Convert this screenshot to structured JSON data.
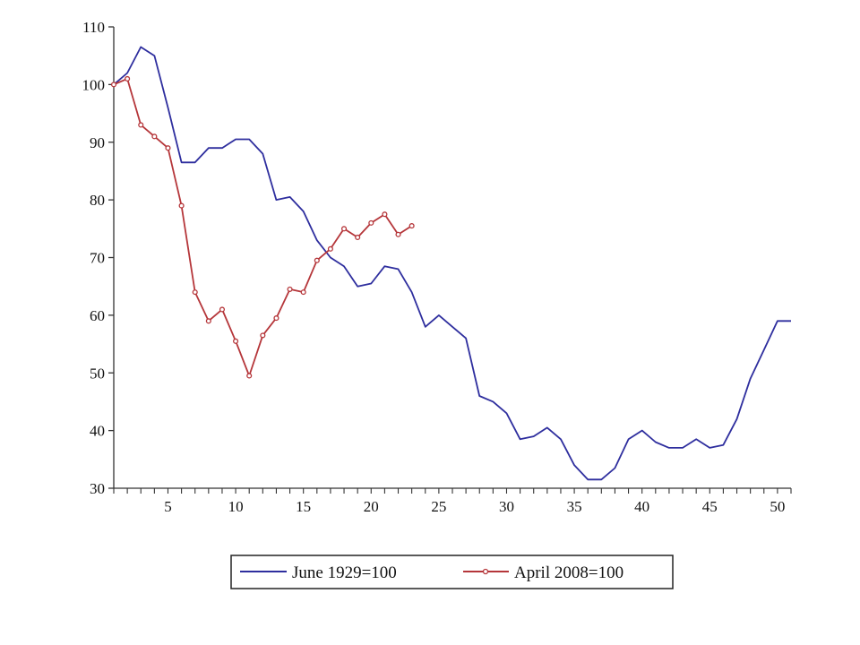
{
  "chart_data": {
    "type": "line",
    "title": "",
    "xlabel": "",
    "ylabel": "",
    "xlim": [
      1,
      51
    ],
    "ylim": [
      30,
      110
    ],
    "x_ticks": [
      5,
      10,
      15,
      20,
      25,
      30,
      35,
      40,
      45,
      50
    ],
    "y_ticks": [
      30,
      40,
      50,
      60,
      70,
      80,
      90,
      100,
      110
    ],
    "grid": false,
    "legend_position": "bottom",
    "series": [
      {
        "name": "June 1929=100",
        "color": "#2e2e9e",
        "marker": "none",
        "x": [
          1,
          2,
          3,
          4,
          5,
          6,
          7,
          8,
          9,
          10,
          11,
          12,
          13,
          14,
          15,
          16,
          17,
          18,
          19,
          20,
          21,
          22,
          23,
          24,
          25,
          26,
          27,
          28,
          29,
          30,
          31,
          32,
          33,
          34,
          35,
          36,
          37,
          38,
          39,
          40,
          41,
          42,
          43,
          44,
          45,
          46,
          47,
          48,
          49,
          50,
          51
        ],
        "y": [
          100,
          102,
          106.5,
          105,
          96,
          86.5,
          86.5,
          89,
          89,
          90.5,
          90.5,
          88,
          80,
          80.5,
          78,
          73,
          70,
          68.5,
          65,
          65.5,
          68.5,
          68,
          64,
          58,
          60,
          58,
          56,
          46,
          45,
          43,
          38.5,
          39,
          40.5,
          38.5,
          34,
          31.5,
          31.5,
          33.5,
          38.5,
          40,
          38,
          37,
          37,
          38.5,
          37,
          37.5,
          42,
          49,
          54,
          59,
          59
        ]
      },
      {
        "name": "April 2008=100",
        "color": "#b5363a",
        "marker": "circle",
        "x": [
          1,
          2,
          3,
          4,
          5,
          6,
          7,
          8,
          9,
          10,
          11,
          12,
          13,
          14,
          15,
          16,
          17,
          18,
          19,
          20,
          21,
          22,
          23
        ],
        "y": [
          100,
          101,
          93,
          91,
          89,
          79,
          64,
          59,
          61,
          55.5,
          49.5,
          56.5,
          59.5,
          64.5,
          64,
          69.5,
          71.5,
          75,
          73.5,
          76,
          77.5,
          74,
          75.5
        ]
      }
    ]
  },
  "legend": {
    "items": [
      {
        "label": "June 1929=100"
      },
      {
        "label": "April 2008=100"
      }
    ]
  }
}
